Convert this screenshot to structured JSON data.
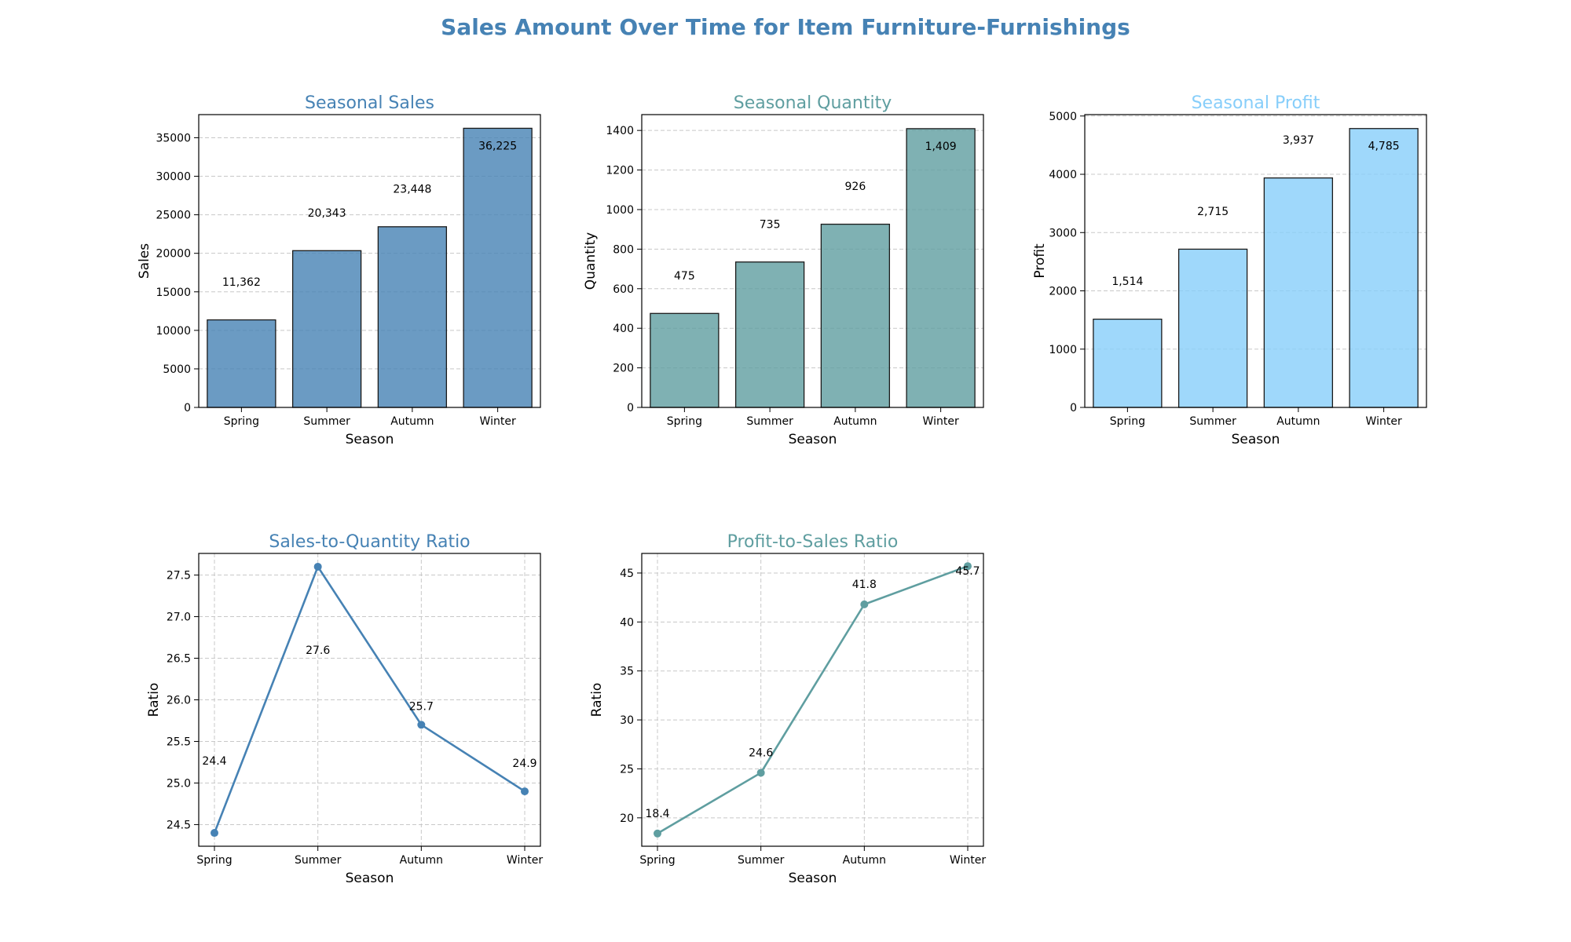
{
  "figure": {
    "title": "Sales Amount Over Time for Item Furniture-Furnishings"
  },
  "colors": {
    "sales": "#4682B4",
    "quantity": "#5F9EA0",
    "profit": "#87CEFA",
    "ratio1": "#4682B4",
    "ratio2": "#5F9EA0",
    "grid": "#c8c8c8",
    "text": "#000000"
  },
  "chart_data": [
    {
      "type": "bar",
      "title": "Seasonal Sales",
      "xlabel": "Season",
      "ylabel": "Sales",
      "categories": [
        "Spring",
        "Summer",
        "Autumn",
        "Winter"
      ],
      "values": [
        11362,
        20343,
        23448,
        36225
      ],
      "value_labels": [
        "11,362",
        "20,343",
        "23,448",
        "36,225"
      ],
      "ylim": [
        0,
        38000
      ],
      "yticks": [
        0,
        5000,
        10000,
        15000,
        20000,
        25000,
        30000,
        35000
      ],
      "ytick_labels": [
        "0",
        "5000",
        "10000",
        "15000",
        "20000",
        "25000",
        "30000",
        "35000"
      ],
      "grid": true,
      "color": "#4682B4",
      "title_color": "#4682B4"
    },
    {
      "type": "bar",
      "title": "Seasonal Quantity",
      "xlabel": "Season",
      "ylabel": "Quantity",
      "categories": [
        "Spring",
        "Summer",
        "Autumn",
        "Winter"
      ],
      "values": [
        475,
        735,
        926,
        1409
      ],
      "value_labels": [
        "475",
        "735",
        "926",
        "1,409"
      ],
      "ylim": [
        0,
        1480
      ],
      "yticks": [
        0,
        200,
        400,
        600,
        800,
        1000,
        1200,
        1400
      ],
      "ytick_labels": [
        "0",
        "200",
        "400",
        "600",
        "800",
        "1000",
        "1200",
        "1400"
      ],
      "grid": true,
      "color": "#5F9EA0",
      "title_color": "#5F9EA0"
    },
    {
      "type": "bar",
      "title": "Seasonal Profit",
      "xlabel": "Season",
      "ylabel": "Profit",
      "categories": [
        "Spring",
        "Summer",
        "Autumn",
        "Winter"
      ],
      "values": [
        1514,
        2715,
        3937,
        4785
      ],
      "value_labels": [
        "1,514",
        "2,715",
        "3,937",
        "4,785"
      ],
      "ylim": [
        0,
        5024
      ],
      "yticks": [
        0,
        1000,
        2000,
        3000,
        4000,
        5000
      ],
      "ytick_labels": [
        "0",
        "1000",
        "2000",
        "3000",
        "4000",
        "5000"
      ],
      "grid": true,
      "color": "#87CEFA",
      "title_color": "#87CEFA"
    },
    {
      "type": "line",
      "title": "Sales-to-Quantity Ratio",
      "xlabel": "Season",
      "ylabel": "Ratio",
      "categories": [
        "Spring",
        "Summer",
        "Autumn",
        "Winter"
      ],
      "values": [
        24.4,
        27.6,
        25.7,
        24.9
      ],
      "value_labels": [
        "24.4",
        "27.6",
        "25.7",
        "24.9"
      ],
      "ylim": [
        24.24,
        27.76
      ],
      "yticks": [
        24.5,
        25.0,
        25.5,
        26.0,
        26.5,
        27.0,
        27.5
      ],
      "ytick_labels": [
        "24.5",
        "25.0",
        "25.5",
        "26.0",
        "26.5",
        "27.0",
        "27.5"
      ],
      "grid": true,
      "color": "#4682B4",
      "title_color": "#4682B4"
    },
    {
      "type": "line",
      "title": "Profit-to-Sales Ratio",
      "xlabel": "Season",
      "ylabel": "Ratio",
      "categories": [
        "Spring",
        "Summer",
        "Autumn",
        "Winter"
      ],
      "values": [
        18.4,
        24.6,
        41.8,
        45.7
      ],
      "value_labels": [
        "18.4",
        "24.6",
        "41.8",
        "45.7"
      ],
      "ylim": [
        17.1,
        47.0
      ],
      "yticks": [
        20,
        25,
        30,
        35,
        40,
        45
      ],
      "ytick_labels": [
        "20",
        "25",
        "30",
        "35",
        "40",
        "45"
      ],
      "grid": true,
      "color": "#5F9EA0",
      "title_color": "#5F9EA0"
    }
  ]
}
